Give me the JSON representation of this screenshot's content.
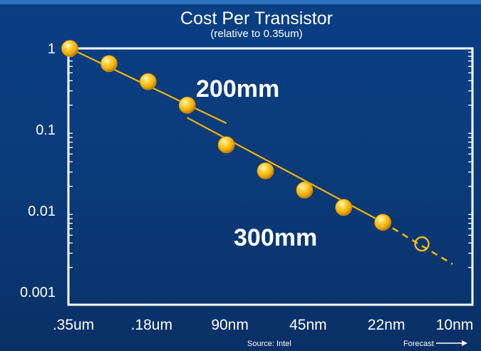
{
  "chart_data": {
    "type": "scatter",
    "title": "Cost Per Transistor",
    "subtitle": "(relative to 0.35um)",
    "y_scale": "log",
    "ylim": [
      0.001,
      1.5
    ],
    "y_ticks": [
      {
        "value": 1,
        "label": "1"
      },
      {
        "value": 0.1,
        "label": "0.1"
      },
      {
        "value": 0.01,
        "label": "0.01"
      },
      {
        "value": 0.001,
        "label": "0.001"
      }
    ],
    "categories": [
      ".35um",
      ".18um",
      "90nm",
      "45nm",
      "22nm",
      "10nm"
    ],
    "series": [
      {
        "name": "200mm",
        "x": [
          0,
          0.5,
          1,
          1.5
        ],
        "y": [
          1,
          0.65,
          0.39,
          0.2
        ],
        "trend_end": [
          2,
          0.12
        ]
      },
      {
        "name": "300mm",
        "x": [
          2,
          2.5,
          3,
          3.5,
          4
        ],
        "y": [
          0.065,
          0.031,
          0.018,
          0.011,
          0.0072
        ],
        "trend_start": [
          1.5,
          0.14
        ]
      }
    ],
    "forecast": {
      "x": 4.5,
      "y": 0.0039,
      "dash_end": [
        5,
        0.0022
      ]
    },
    "annotations": {
      "source": "Source: Intel",
      "forecast_label": "Forecast"
    },
    "colors": {
      "background": "#0b3a78",
      "frame": "#ffffff",
      "line": "#f2b705",
      "marker": "#ffc816"
    }
  }
}
